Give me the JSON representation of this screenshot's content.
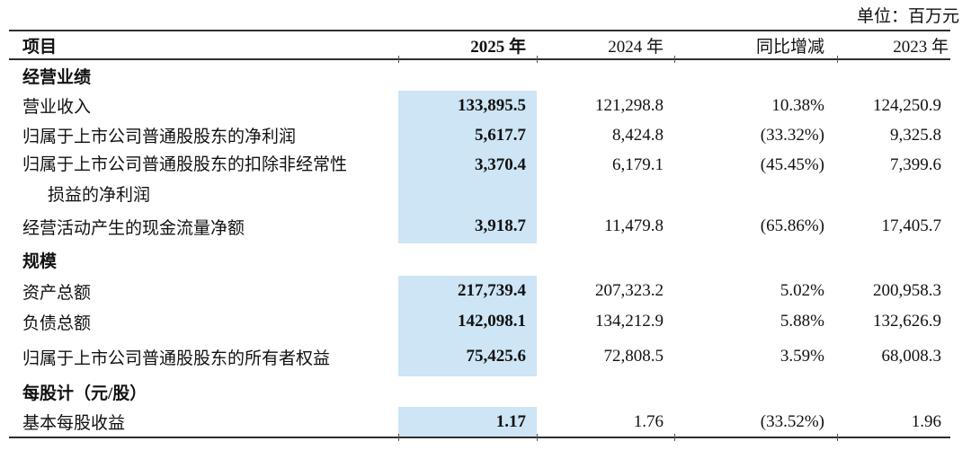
{
  "unit_label": "单位：百万元",
  "colors": {
    "highlight": "#cde5f5",
    "rule": "#2e2e2e"
  },
  "header": {
    "item": "项目",
    "y2025": "2025 年",
    "y2024": "2024 年",
    "yoy": "同比增减",
    "y2023": "2023 年"
  },
  "rows": [
    {
      "type": "section",
      "label": "经营业绩"
    },
    {
      "type": "data",
      "label": "营业收入",
      "v2025": "133,895.5",
      "v2024": "121,298.8",
      "yoy": "10.38%",
      "v2023": "124,250.9"
    },
    {
      "type": "data",
      "label": "归属于上市公司普通股股东的净利润",
      "v2025": "5,617.7",
      "v2024": "8,424.8",
      "yoy": "(33.32%)",
      "v2023": "9,325.8"
    },
    {
      "type": "data",
      "label": "归属于上市公司普通股股东的扣除非经常性",
      "label2": "损益的净利润",
      "v2025": "3,370.4",
      "v2024": "6,179.1",
      "yoy": "(45.45%)",
      "v2023": "7,399.6"
    },
    {
      "type": "data",
      "label": "经营活动产生的现金流量净额",
      "v2025": "3,918.7",
      "v2024": "11,479.8",
      "yoy": "(65.86%)",
      "v2023": "17,405.7"
    },
    {
      "type": "section",
      "label": "规模"
    },
    {
      "type": "data",
      "label": "资产总额",
      "v2025": "217,739.4",
      "v2024": "207,323.2",
      "yoy": "5.02%",
      "v2023": "200,958.3"
    },
    {
      "type": "data",
      "label": "负债总额",
      "v2025": "142,098.1",
      "v2024": "134,212.9",
      "yoy": "5.88%",
      "v2023": "132,626.9"
    },
    {
      "type": "data",
      "label": "归属于上市公司普通股股东的所有者权益",
      "v2025": "75,425.6",
      "v2024": "72,808.5",
      "yoy": "3.59%",
      "v2023": "68,008.3"
    },
    {
      "type": "section",
      "label": "每股计（元/股）"
    },
    {
      "type": "data",
      "label": "基本每股收益",
      "v2025": "1.17",
      "v2024": "1.76",
      "yoy": "(33.52%)",
      "v2023": "1.96"
    }
  ]
}
